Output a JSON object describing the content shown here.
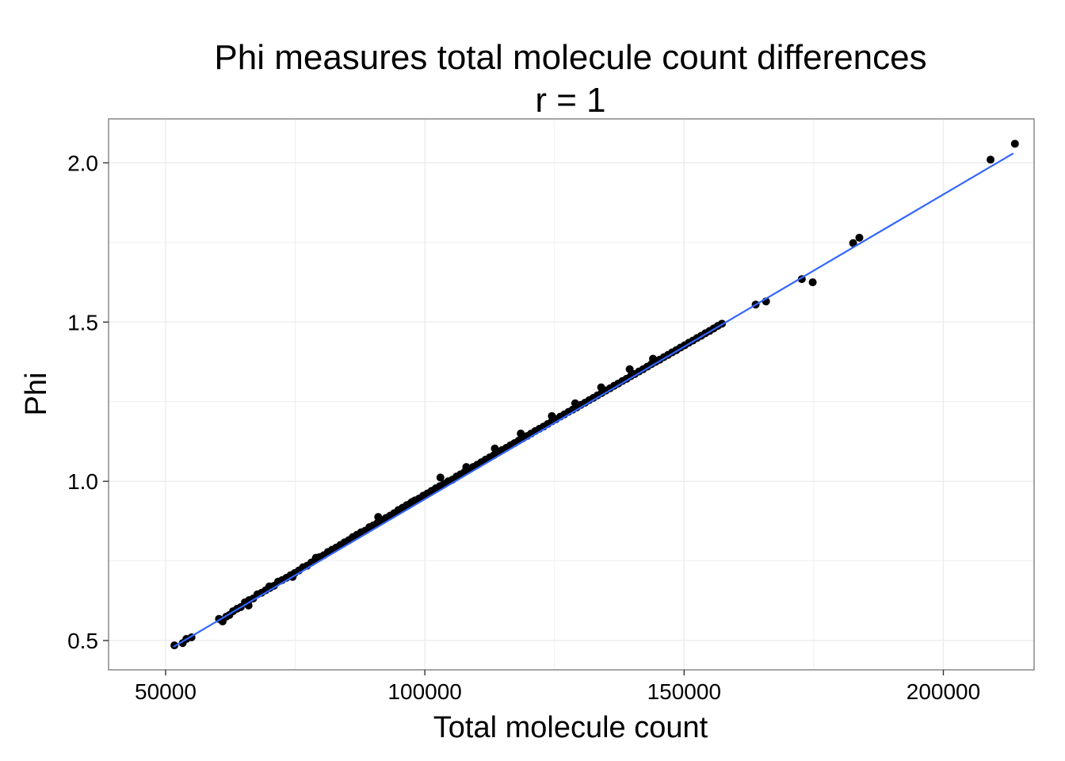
{
  "chart_data": {
    "type": "scatter",
    "title": "Phi measures total molecule count differences",
    "subtitle": "r = 1",
    "xlabel": "Total molecule count",
    "ylabel": "Phi",
    "xlim": [
      39000,
      217500
    ],
    "ylim": [
      0.408,
      2.138
    ],
    "x_ticks": [
      50000,
      100000,
      150000,
      200000
    ],
    "x_tick_labels": [
      "50000",
      "100000",
      "150000",
      "200000"
    ],
    "y_ticks": [
      0.5,
      1.0,
      1.5,
      2.0
    ],
    "y_tick_labels": [
      "0.5",
      "1.0",
      "1.5",
      "2.0"
    ],
    "grid": true,
    "colors": {
      "points": "#000000",
      "fit_line": "#3366ff",
      "grid": "#ebebeb",
      "border": "#7f7f7f"
    },
    "fit_line": {
      "x": [
        51500,
        213500
      ],
      "y": [
        0.48,
        2.03
      ]
    },
    "points": {
      "x": [
        51700,
        53300,
        54000,
        55000,
        60300,
        61000,
        61700,
        62300,
        63000,
        63800,
        64500,
        65300,
        66100,
        66900,
        67700,
        68500,
        69300,
        70100,
        70900,
        71700,
        72500,
        73300,
        74100,
        74900,
        75700,
        76500,
        77300,
        78100,
        78900,
        79700,
        80500,
        81300,
        82100,
        82900,
        83700,
        84500,
        85300,
        86100,
        86900,
        87700,
        88500,
        89300,
        90100,
        90900,
        91700,
        92500,
        93300,
        94100,
        94900,
        95700,
        96500,
        97300,
        98100,
        98900,
        99700,
        100500,
        101300,
        102100,
        102900,
        103700,
        104500,
        105300,
        106100,
        106900,
        107700,
        108500,
        109300,
        110100,
        110900,
        111700,
        112500,
        113300,
        114100,
        114900,
        115700,
        116500,
        117300,
        118100,
        118900,
        119700,
        120500,
        121300,
        122100,
        122900,
        123700,
        124500,
        125300,
        126100,
        126900,
        127700,
        128500,
        129300,
        130100,
        130900,
        131700,
        132500,
        133300,
        134100,
        134900,
        135700,
        136500,
        137300,
        138100,
        138900,
        139700,
        140500,
        141300,
        142100,
        142900,
        143700,
        144500,
        145300,
        146100,
        146900,
        147700,
        148500,
        149300,
        150100,
        150900,
        151700,
        152500,
        153300,
        154100,
        154900,
        155700,
        156500,
        157300,
        163800,
        165800,
        172700,
        174800,
        182600,
        183800,
        209100,
        213800,
        74500,
        86000,
        97500,
        108000,
        118500,
        129000,
        139500,
        79000,
        91000,
        103000,
        113500,
        124500,
        134000,
        144000,
        66000,
        70000
      ],
      "y": [
        0.485,
        0.492,
        0.505,
        0.51,
        0.568,
        0.56,
        0.575,
        0.58,
        0.592,
        0.6,
        0.605,
        0.62,
        0.627,
        0.632,
        0.645,
        0.65,
        0.658,
        0.665,
        0.672,
        0.685,
        0.69,
        0.697,
        0.705,
        0.712,
        0.72,
        0.73,
        0.735,
        0.745,
        0.755,
        0.762,
        0.768,
        0.778,
        0.785,
        0.792,
        0.8,
        0.808,
        0.815,
        0.825,
        0.832,
        0.84,
        0.845,
        0.856,
        0.862,
        0.87,
        0.878,
        0.885,
        0.892,
        0.9,
        0.91,
        0.917,
        0.925,
        0.932,
        0.94,
        0.946,
        0.955,
        0.962,
        0.97,
        0.978,
        0.985,
        0.992,
        1.0,
        1.005,
        1.015,
        1.022,
        1.03,
        1.038,
        1.045,
        1.052,
        1.06,
        1.068,
        1.075,
        1.082,
        1.09,
        1.098,
        1.105,
        1.113,
        1.12,
        1.128,
        1.135,
        1.142,
        1.15,
        1.158,
        1.165,
        1.172,
        1.18,
        1.188,
        1.195,
        1.203,
        1.21,
        1.218,
        1.225,
        1.232,
        1.24,
        1.247,
        1.255,
        1.262,
        1.27,
        1.277,
        1.285,
        1.292,
        1.3,
        1.307,
        1.315,
        1.322,
        1.33,
        1.337,
        1.345,
        1.352,
        1.36,
        1.368,
        1.375,
        1.382,
        1.39,
        1.397,
        1.405,
        1.412,
        1.42,
        1.427,
        1.435,
        1.442,
        1.45,
        1.457,
        1.465,
        1.472,
        1.48,
        1.488,
        1.495,
        1.555,
        1.565,
        1.635,
        1.625,
        1.748,
        1.765,
        2.01,
        2.06,
        0.7,
        0.822,
        0.935,
        1.045,
        1.15,
        1.245,
        1.352,
        0.76,
        0.888,
        1.012,
        1.103,
        1.205,
        1.295,
        1.385,
        0.61,
        0.67
      ]
    }
  }
}
